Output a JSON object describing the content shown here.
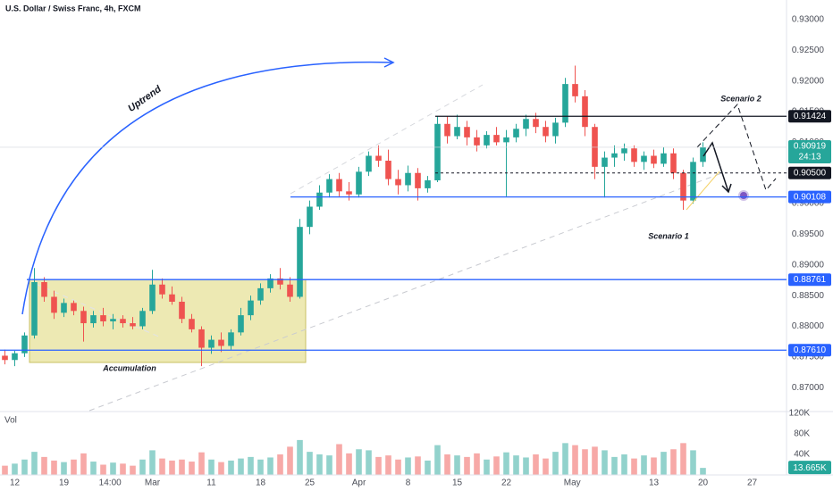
{
  "chart_data": {
    "type": "candlestick",
    "title": "U.S. Dollar / Swiss Franc, 4h, FXCM",
    "volume_title": "Vol",
    "up_color": "#26a69a",
    "down_color": "#ef5350",
    "xlim": [
      -0.5,
      79.5
    ],
    "xticks": [
      {
        "value": 1,
        "label": "12"
      },
      {
        "value": 6,
        "label": "19"
      },
      {
        "value": 10.7,
        "label": "14:00"
      },
      {
        "value": 15,
        "label": "Mar"
      },
      {
        "value": 21,
        "label": "11"
      },
      {
        "value": 26,
        "label": "18"
      },
      {
        "value": 31,
        "label": "25"
      },
      {
        "value": 36,
        "label": "Apr"
      },
      {
        "value": 41,
        "label": "8"
      },
      {
        "value": 46,
        "label": "15"
      },
      {
        "value": 51,
        "label": "22"
      },
      {
        "value": 57.7,
        "label": "May"
      },
      {
        "value": 66,
        "label": "13"
      },
      {
        "value": 71,
        "label": "20"
      },
      {
        "value": 76,
        "label": "27"
      }
    ],
    "ylim": [
      0.86624,
      0.9332
    ],
    "yticks": [
      {
        "value": 0.87,
        "label": "0.87000"
      },
      {
        "value": 0.875,
        "label": "0.87500"
      },
      {
        "value": 0.88,
        "label": "0.88000"
      },
      {
        "value": 0.885,
        "label": "0.88500"
      },
      {
        "value": 0.89,
        "label": "0.89000"
      },
      {
        "value": 0.895,
        "label": "0.89500"
      },
      {
        "value": 0.9,
        "label": "0.90000"
      },
      {
        "value": 0.905,
        "label": "0.90500"
      },
      {
        "value": 0.91,
        "label": "0.91000"
      },
      {
        "value": 0.915,
        "label": "0.91500"
      },
      {
        "value": 0.92,
        "label": "0.92000"
      },
      {
        "value": 0.925,
        "label": "0.92500"
      },
      {
        "value": 0.93,
        "label": "0.93000"
      }
    ],
    "open": [
      0.8752,
      0.8745,
      0.8756,
      0.8785,
      0.8872,
      0.8848,
      0.8822,
      0.8838,
      0.8825,
      0.8805,
      0.8818,
      0.8808,
      0.8812,
      0.8805,
      0.88,
      0.8825,
      0.8868,
      0.8852,
      0.884,
      0.8812,
      0.8795,
      0.8765,
      0.8778,
      0.8768,
      0.879,
      0.8818,
      0.8842,
      0.8862,
      0.8878,
      0.8868,
      0.8848,
      0.8962,
      0.8995,
      0.9018,
      0.904,
      0.902,
      0.9015,
      0.9052,
      0.9078,
      0.907,
      0.904,
      0.903,
      0.905,
      0.9025,
      0.9038,
      0.913,
      0.911,
      0.9125,
      0.9108,
      0.9095,
      0.9112,
      0.91,
      0.9108,
      0.9122,
      0.9138,
      0.9125,
      0.911,
      0.9132,
      0.9195,
      0.9175,
      0.9125,
      0.906,
      0.9075,
      0.9082,
      0.909,
      0.9068,
      0.9078,
      0.9065,
      0.9082,
      0.905,
      0.9005,
      0.9068
    ],
    "high": [
      0.8762,
      0.876,
      0.879,
      0.8895,
      0.888,
      0.8858,
      0.8845,
      0.8842,
      0.8832,
      0.8825,
      0.883,
      0.882,
      0.8818,
      0.8815,
      0.883,
      0.8892,
      0.8878,
      0.8865,
      0.8848,
      0.882,
      0.88,
      0.8785,
      0.879,
      0.8795,
      0.883,
      0.885,
      0.887,
      0.8885,
      0.8895,
      0.888,
      0.8975,
      0.9005,
      0.903,
      0.9048,
      0.905,
      0.9035,
      0.906,
      0.9085,
      0.9095,
      0.9088,
      0.9055,
      0.9062,
      0.9058,
      0.9045,
      0.9142,
      0.9142,
      0.9145,
      0.9135,
      0.912,
      0.9118,
      0.9125,
      0.912,
      0.913,
      0.9145,
      0.9148,
      0.9135,
      0.914,
      0.9205,
      0.9225,
      0.9185,
      0.913,
      0.9085,
      0.9095,
      0.9098,
      0.9095,
      0.9085,
      0.9088,
      0.9092,
      0.909,
      0.9055,
      0.9075,
      0.91
    ],
    "low": [
      0.8738,
      0.8735,
      0.875,
      0.878,
      0.884,
      0.8812,
      0.8815,
      0.8818,
      0.8775,
      0.8798,
      0.88,
      0.8795,
      0.8798,
      0.8795,
      0.8795,
      0.882,
      0.8845,
      0.8835,
      0.8805,
      0.879,
      0.8735,
      0.8755,
      0.8758,
      0.8762,
      0.8785,
      0.881,
      0.8835,
      0.8855,
      0.886,
      0.884,
      0.8845,
      0.895,
      0.899,
      0.901,
      0.9012,
      0.9005,
      0.901,
      0.9045,
      0.906,
      0.903,
      0.9015,
      0.902,
      0.9005,
      0.9018,
      0.9035,
      0.9098,
      0.9105,
      0.9095,
      0.9085,
      0.909,
      0.9095,
      0.9012,
      0.91,
      0.911,
      0.9115,
      0.91,
      0.9098,
      0.9125,
      0.9165,
      0.911,
      0.904,
      0.901,
      0.906,
      0.907,
      0.906,
      0.9055,
      0.9058,
      0.906,
      0.904,
      0.899,
      0.9,
      0.906
    ],
    "close": [
      0.8745,
      0.8756,
      0.8785,
      0.8872,
      0.8848,
      0.8822,
      0.8838,
      0.8825,
      0.8805,
      0.8818,
      0.8808,
      0.8812,
      0.8805,
      0.88,
      0.8825,
      0.8868,
      0.8852,
      0.884,
      0.8812,
      0.8795,
      0.8765,
      0.8778,
      0.8768,
      0.879,
      0.8818,
      0.8842,
      0.8862,
      0.8878,
      0.8868,
      0.8848,
      0.8962,
      0.8995,
      0.9018,
      0.904,
      0.902,
      0.9015,
      0.9052,
      0.9078,
      0.907,
      0.904,
      0.903,
      0.905,
      0.9025,
      0.9038,
      0.913,
      0.911,
      0.9125,
      0.9108,
      0.9095,
      0.9112,
      0.91,
      0.9108,
      0.9122,
      0.9138,
      0.9125,
      0.911,
      0.9132,
      0.9195,
      0.9175,
      0.9125,
      0.906,
      0.9075,
      0.9082,
      0.909,
      0.9068,
      0.9078,
      0.9065,
      0.9082,
      0.905,
      0.9005,
      0.9068,
      0.9092
    ],
    "volume": [
      18000,
      22000,
      30000,
      45000,
      35000,
      28000,
      25000,
      30000,
      42000,
      26000,
      20000,
      24000,
      22000,
      18000,
      30000,
      48000,
      32000,
      28000,
      30000,
      26000,
      44000,
      30000,
      25000,
      28000,
      32000,
      35000,
      30000,
      34000,
      40000,
      55000,
      68000,
      45000,
      40000,
      38000,
      60000,
      42000,
      50000,
      48000,
      35000,
      38000,
      30000,
      34000,
      36000,
      28000,
      58000,
      40000,
      38000,
      35000,
      42000,
      30000,
      36000,
      44000,
      38000,
      34000,
      40000,
      32000,
      45000,
      62000,
      58000,
      50000,
      55000,
      48000,
      35000,
      40000,
      32000,
      38000,
      34000,
      45000,
      50000,
      62000,
      48000,
      13665
    ],
    "volume_last_label": "13.665K",
    "vlim": [
      0,
      120000
    ],
    "vticks": [
      {
        "value": 40000,
        "label": "40K"
      },
      {
        "value": 80000,
        "label": "80K"
      },
      {
        "value": 120000,
        "label": "120K"
      }
    ],
    "levels": [
      {
        "value": 0.91424,
        "label": "0.91424",
        "color": "#131722",
        "style": "solid"
      },
      {
        "value": 0.905,
        "label": "0.90500",
        "color": "#131722",
        "style": "dashed"
      },
      {
        "value": 0.90108,
        "label": "0.90108",
        "color": "#2962ff",
        "style": "solid"
      },
      {
        "value": 0.88761,
        "label": "0.88761",
        "color": "#2962ff",
        "style": "solid"
      },
      {
        "value": 0.8761,
        "label": "0.87610",
        "color": "#2962ff",
        "style": "solid"
      }
    ],
    "last_price": {
      "value": 0.90919,
      "label": "0.90919",
      "countdown": "24:13",
      "color": "#26a69a"
    },
    "annotations": {
      "uptrend": "Uptrend",
      "accumulation": "Accumulation",
      "scenario1": "Scenario 1",
      "scenario2": "Scenario 2"
    }
  }
}
